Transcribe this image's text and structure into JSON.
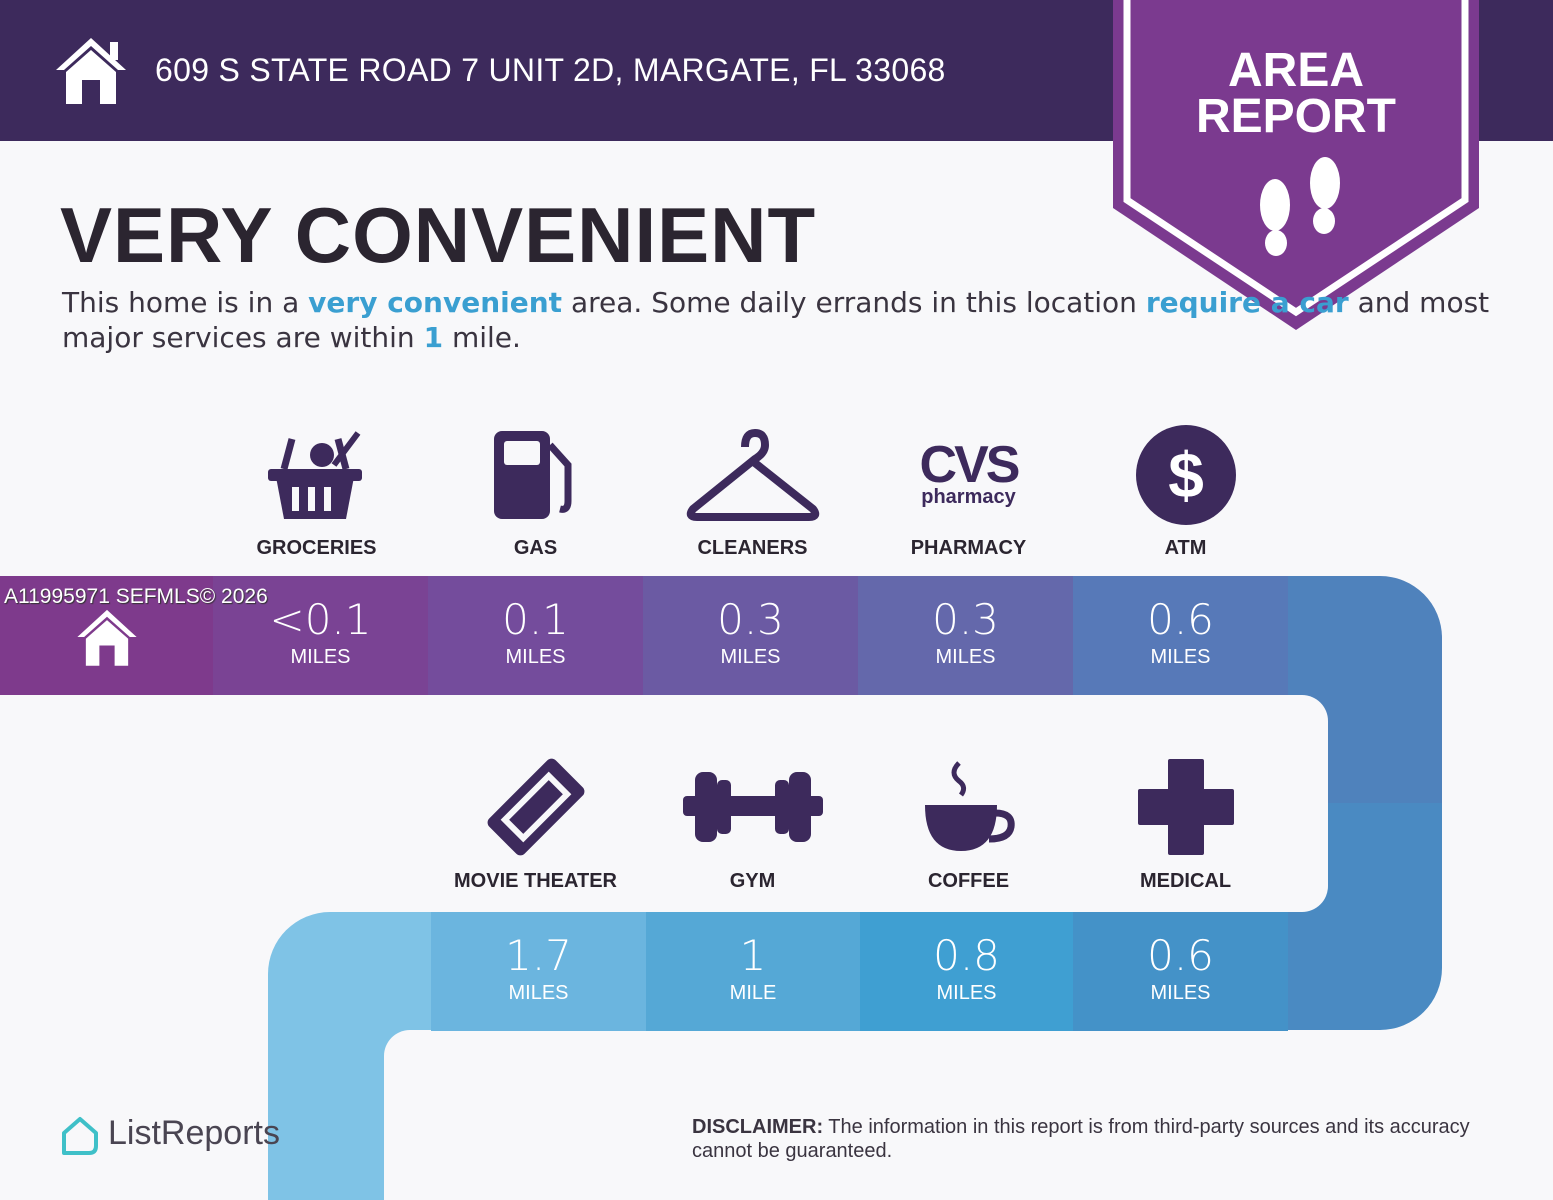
{
  "header": {
    "address": "609 S STATE ROAD 7 UNIT 2D, MARGATE, FL 33068",
    "badge_line1": "AREA",
    "badge_line2": "REPORT"
  },
  "headline": "VERY CONVENIENT",
  "description": {
    "p1": "This home is in a ",
    "h1": "very convenient",
    "p2": " area. Some daily errands in this location ",
    "h2": "require a car",
    "p3": " and most major services are within ",
    "h3": "1",
    "p4": " mile."
  },
  "watermark": "A11995971  SEFMLS© 2026",
  "row1": [
    {
      "label": "GROCERIES",
      "value": "<0.1",
      "unit": "MILES",
      "icon": "grocery-basket-icon"
    },
    {
      "label": "GAS",
      "value": "0.1",
      "unit": "MILES",
      "icon": "gas-pump-icon"
    },
    {
      "label": "CLEANERS",
      "value": "0.3",
      "unit": "MILES",
      "icon": "hanger-icon"
    },
    {
      "label": "PHARMACY",
      "value": "0.3",
      "unit": "MILES",
      "icon": "cvs-pharmacy-logo"
    },
    {
      "label": "ATM",
      "value": "0.6",
      "unit": "MILES",
      "icon": "dollar-icon"
    }
  ],
  "row2": [
    {
      "label": "MOVIE THEATER",
      "value": "1.7",
      "unit": "MILES",
      "icon": "ticket-icon"
    },
    {
      "label": "GYM",
      "value": "1",
      "unit": "MILE",
      "icon": "dumbbell-icon"
    },
    {
      "label": "COFFEE",
      "value": "0.8",
      "unit": "MILES",
      "icon": "coffee-cup-icon"
    },
    {
      "label": "MEDICAL",
      "value": "0.6",
      "unit": "MILES",
      "icon": "medical-cross-icon"
    }
  ],
  "cvs": {
    "top": "CVS",
    "bottom": "pharmacy"
  },
  "logo": "ListReports",
  "disclaimer": {
    "label": "DISCLAIMER:",
    "text": " The information in this report is from third-party sources and its accuracy cannot be guaranteed."
  },
  "colors": {
    "header": "#3d2a5c",
    "badge": "#7b3a8f",
    "icon": "#3d2a5c",
    "highlight": "#3a9fd1"
  }
}
